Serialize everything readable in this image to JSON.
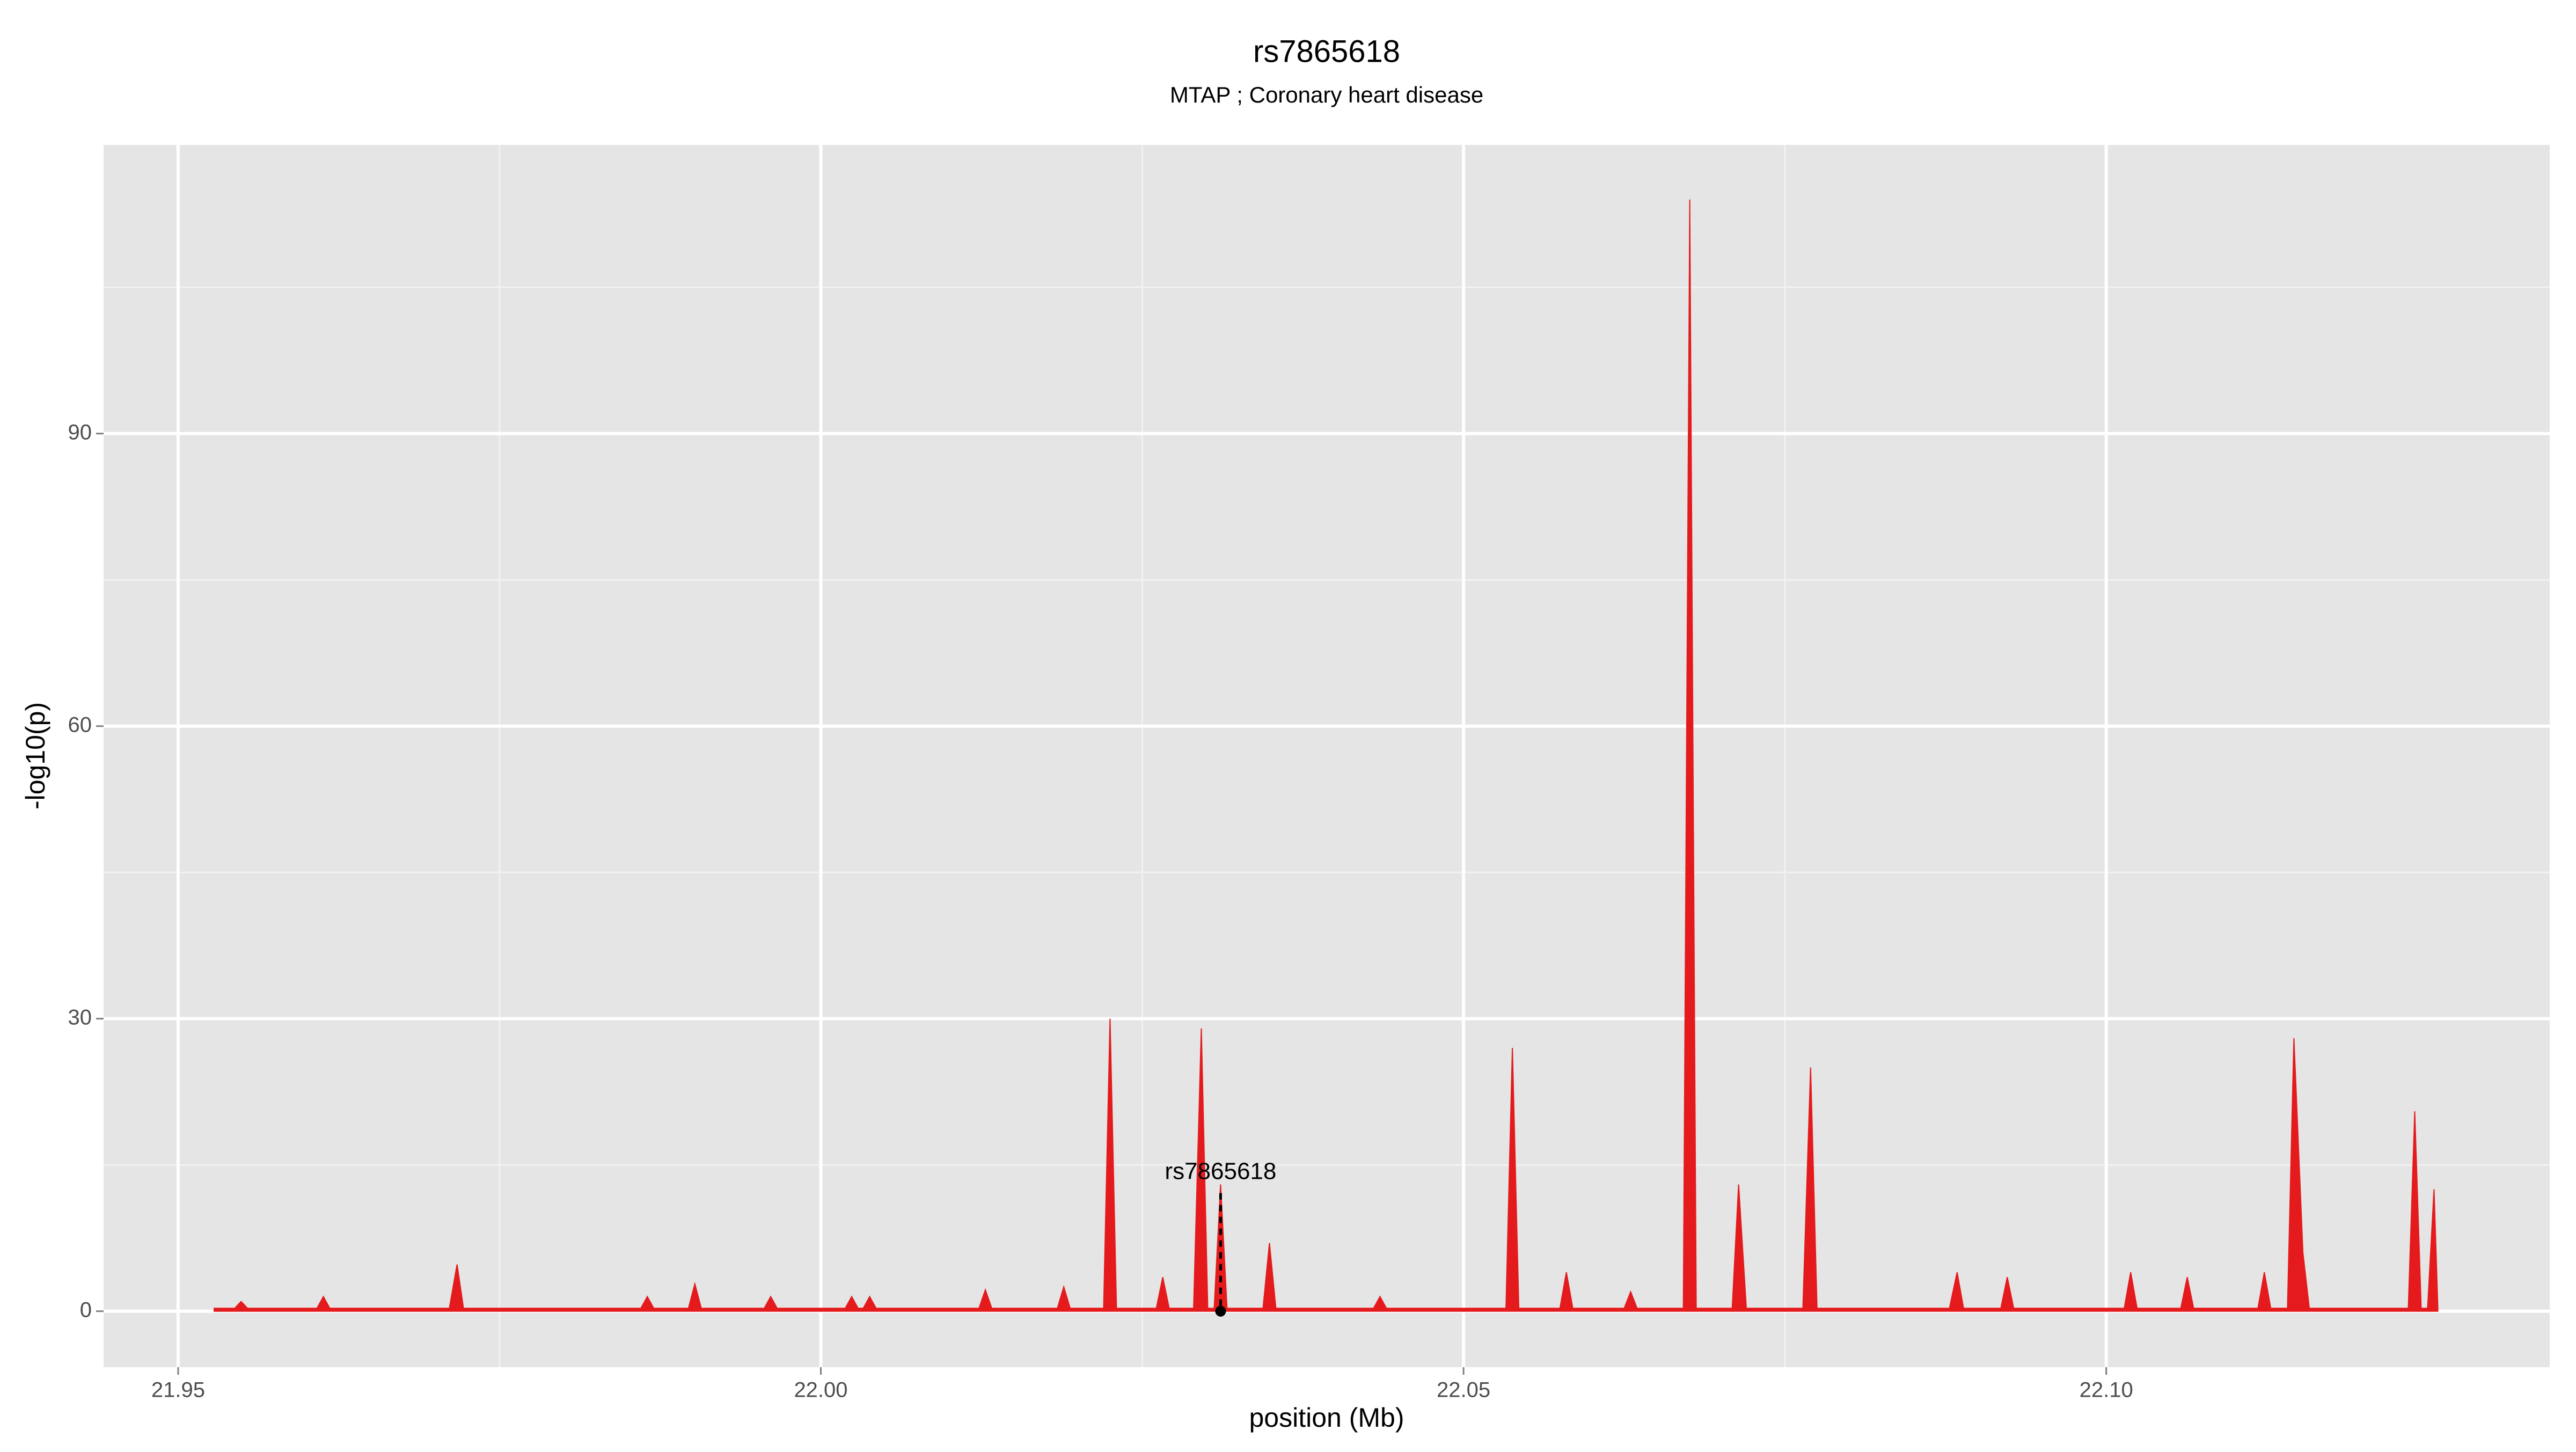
{
  "chart_data": {
    "type": "area",
    "title": "rs7865618",
    "subtitle": "MTAP ; Coronary heart disease",
    "x_label": "position (Mb)",
    "y_label": "-log10(p)",
    "color": "#e41a1c",
    "grid": true,
    "xlim": [
      21.9442,
      22.1345
    ],
    "ylim": [
      -5.74,
      119.6
    ],
    "xticks": [
      21.95,
      {
        "value": 22,
        "label": "22.00"
      },
      22.05,
      {
        "value": 22.1,
        "label": "22.10"
      }
    ],
    "yticks": [
      0,
      30,
      60,
      90
    ],
    "annotation": {
      "text": "rs7865618",
      "x": 22.0311,
      "y": 0
    },
    "x": [
      21.9528,
      21.9544,
      21.9549,
      21.9554,
      21.9608,
      21.9613,
      21.9618,
      21.9711,
      21.9717,
      21.9722,
      21.986,
      21.9865,
      21.987,
      21.9897,
      21.9902,
      21.9907,
      21.9956,
      21.9961,
      21.9966,
      22.0019,
      22.0024,
      22.0029,
      22.0033,
      22.0038,
      22.0043,
      22.0123,
      22.0128,
      22.0133,
      22.0184,
      22.0189,
      22.0194,
      22.022,
      22.0225,
      22.023,
      22.0261,
      22.0266,
      22.0271,
      22.029,
      22.0296,
      22.0301,
      22.0306,
      22.0311,
      22.0316,
      22.0344,
      22.0349,
      22.0354,
      22.043,
      22.0435,
      22.044,
      22.0533,
      22.0538,
      22.0543,
      22.0575,
      22.058,
      22.0585,
      22.0625,
      22.063,
      22.0635,
      22.0671,
      22.0676,
      22.0681,
      22.0709,
      22.0714,
      22.072,
      22.0764,
      22.077,
      22.0775,
      22.0878,
      22.0884,
      22.0889,
      22.0918,
      22.0923,
      22.0928,
      22.1014,
      22.1019,
      22.1024,
      22.1058,
      22.1063,
      22.1068,
      22.1118,
      22.1123,
      22.1128,
      22.1141,
      22.1146,
      22.1153,
      22.1158,
      22.1235,
      22.124,
      22.1245,
      22.125,
      22.1255,
      22.1258
    ],
    "values": [
      0.3,
      0.3,
      1,
      0.3,
      0.3,
      1.5,
      0.3,
      0.3,
      4.8,
      0.3,
      0.3,
      1.5,
      0.3,
      0.3,
      2.8,
      0.3,
      0.3,
      1.5,
      0.3,
      0.3,
      1.5,
      0.3,
      0.3,
      1.5,
      0.3,
      0.3,
      2.2,
      0.3,
      0.3,
      2.5,
      0.3,
      0.3,
      30,
      0.3,
      0.3,
      3.5,
      0.3,
      0.3,
      29,
      0.3,
      0.3,
      13,
      0.3,
      0.3,
      7,
      0.3,
      0.3,
      1.5,
      0.3,
      0.3,
      27,
      0.3,
      0.3,
      4,
      0.3,
      0.3,
      2,
      0.3,
      0.3,
      114,
      0.3,
      0.3,
      13,
      0.3,
      0.3,
      25,
      0.3,
      0.3,
      4,
      0.3,
      0.3,
      3.5,
      0.3,
      0.3,
      4,
      0.3,
      0.3,
      3.5,
      0.3,
      0.3,
      4,
      0.3,
      0.3,
      28,
      6,
      0.3,
      0.3,
      20.5,
      0.3,
      0.3,
      12.5,
      0.3
    ]
  }
}
